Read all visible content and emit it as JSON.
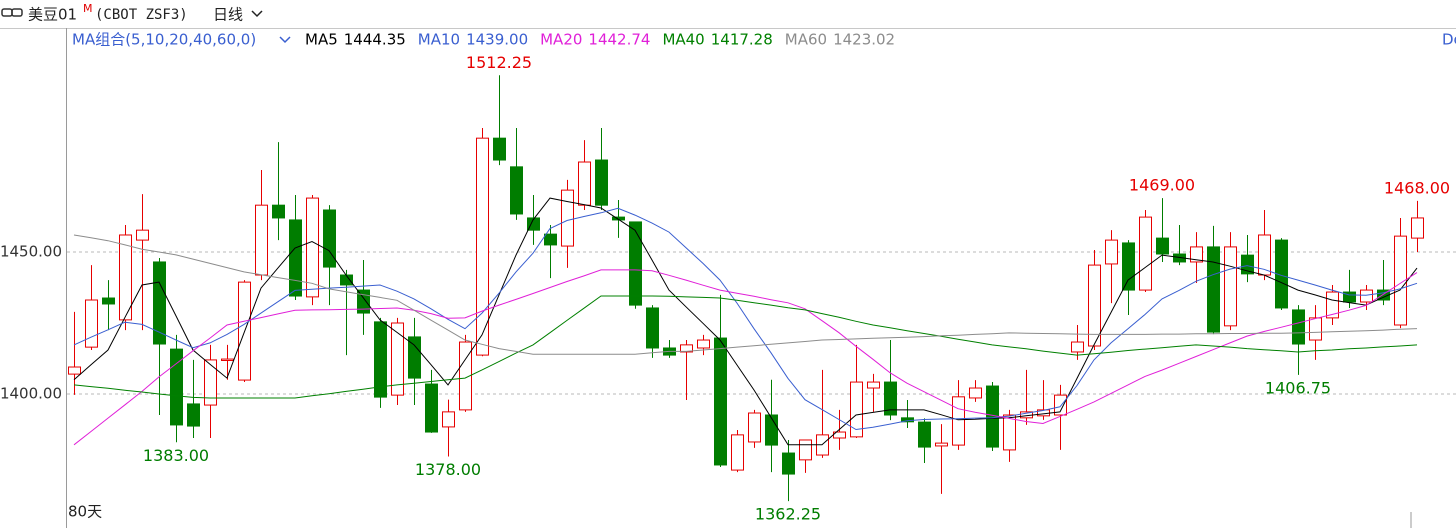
{
  "toolbar": {
    "symbol": "美豆01",
    "superscript": "M",
    "code": "(CBOT ZSF3)",
    "period": "日线"
  },
  "chart_data": {
    "type": "candlestick",
    "indicator_label": "MA组合(5,10,20,40,60,0)",
    "edge_text": "De",
    "footer": "80天",
    "ylim": [
      1352.8,
      1528.9
    ],
    "yticks": [
      {
        "value": 1450,
        "label": "1450.00"
      },
      {
        "value": 1400,
        "label": "1400.00"
      }
    ],
    "grid": true,
    "up_color": "#e60000",
    "down_color": "#007d00",
    "open": [
      1407.0,
      1416.5,
      1433.8,
      1426.1,
      1454.2,
      1446.5,
      1415.8,
      1396.5,
      1396.1,
      1411.8,
      1404.9,
      1441.9,
      1466.5,
      1461.3,
      1434.2,
      1464.8,
      1441.9,
      1436.6,
      1425.4,
      1399.6,
      1420.1,
      1403.5,
      1388.4,
      1394.4,
      1413.7,
      1490.1,
      1480.0,
      1462.0,
      1456.3,
      1452.1,
      1466.5,
      1482.4,
      1462.3,
      1460.6,
      1430.3,
      1416.2,
      1414.8,
      1416.2,
      1419.7,
      1373.2,
      1383.1,
      1392.6,
      1379.2,
      1376.8,
      1378.5,
      1384.5,
      1384.9,
      1402.1,
      1404.2,
      1391.6,
      1390.1,
      1381.7,
      1382.0,
      1398.6,
      1402.8,
      1380.3,
      1391.6,
      1392.3,
      1392.6,
      1414.8,
      1416.9,
      1445.8,
      1453.2,
      1436.6,
      1454.9,
      1449.3,
      1446.5,
      1451.8,
      1424.0,
      1448.9,
      1441.9,
      1454.2,
      1429.6,
      1419.0,
      1426.8,
      1435.9,
      1432.4,
      1436.6,
      1424.3,
      1454.9
    ],
    "high": [
      1428.9,
      1445.4,
      1440.1,
      1459.5,
      1470.4,
      1447.9,
      1420.8,
      1412.0,
      1417.3,
      1417.3,
      1440.1,
      1478.9,
      1488.7,
      1470.1,
      1470.1,
      1466.5,
      1443.7,
      1447.2,
      1426.8,
      1426.8,
      1426.8,
      1408.5,
      1398.0,
      1420.8,
      1493.7,
      1512.25,
      1493.7,
      1470.1,
      1459.5,
      1475.4,
      1489.4,
      1493.7,
      1468.3,
      1460.6,
      1431.3,
      1419.0,
      1419.0,
      1420.8,
      1434.9,
      1387.3,
      1394.4,
      1405.0,
      1383.8,
      1383.8,
      1408.5,
      1394.4,
      1417.3,
      1407.1,
      1419.0,
      1397.9,
      1391.4,
      1389.4,
      1404.9,
      1404.9,
      1404.2,
      1394.4,
      1408.5,
      1404.9,
      1403.2,
      1424.3,
      1450.7,
      1457.7,
      1454.2,
      1464.8,
      1469.0,
      1459.5,
      1457.0,
      1459.2,
      1457.0,
      1456.0,
      1464.8,
      1454.9,
      1431.3,
      1431.3,
      1438.4,
      1443.7,
      1438.4,
      1447.2,
      1462.0,
      1468.0
    ],
    "low": [
      1399.7,
      1415.5,
      1422.5,
      1422.5,
      1422.5,
      1392.6,
      1383.0,
      1384.5,
      1384.5,
      1405.0,
      1404.2,
      1440.1,
      1454.2,
      1433.1,
      1431.3,
      1431.3,
      1413.7,
      1420.8,
      1395.1,
      1396.1,
      1396.1,
      1386.3,
      1378.0,
      1393.7,
      1413.3,
      1480.6,
      1461.3,
      1452.5,
      1440.8,
      1444.4,
      1464.8,
      1464.8,
      1455.0,
      1430.0,
      1412.7,
      1412.7,
      1397.9,
      1413.7,
      1374.3,
      1372.5,
      1381.0,
      1372.5,
      1362.25,
      1372.2,
      1377.5,
      1380.3,
      1384.5,
      1393.7,
      1390.8,
      1388.0,
      1375.7,
      1364.8,
      1380.3,
      1397.2,
      1379.9,
      1376.1,
      1389.1,
      1390.9,
      1380.3,
      1412.0,
      1415.5,
      1432.0,
      1427.8,
      1435.9,
      1446.5,
      1445.4,
      1439.1,
      1421.1,
      1422.5,
      1439.4,
      1440.1,
      1429.6,
      1406.75,
      1412.0,
      1424.3,
      1430.3,
      1429.6,
      1431.3,
      1423.2,
      1450.0
    ],
    "close": [
      1409.5,
      1433.1,
      1431.7,
      1456.0,
      1457.7,
      1417.6,
      1389.1,
      1388.7,
      1412.0,
      1412.3,
      1439.4,
      1466.5,
      1462.0,
      1434.5,
      1469.0,
      1444.7,
      1438.4,
      1428.5,
      1398.9,
      1425.0,
      1405.6,
      1386.6,
      1393.7,
      1418.3,
      1490.1,
      1482.4,
      1463.4,
      1457.7,
      1452.5,
      1471.8,
      1481.7,
      1466.5,
      1461.3,
      1431.3,
      1416.2,
      1413.7,
      1417.3,
      1419.0,
      1375.0,
      1385.6,
      1393.3,
      1382.0,
      1371.8,
      1383.8,
      1385.6,
      1386.6,
      1404.2,
      1404.2,
      1392.6,
      1390.2,
      1381.3,
      1382.7,
      1399.0,
      1402.1,
      1381.3,
      1392.6,
      1393.7,
      1394.4,
      1399.6,
      1418.3,
      1445.4,
      1454.2,
      1436.6,
      1462.3,
      1449.3,
      1446.5,
      1451.8,
      1421.8,
      1451.8,
      1442.3,
      1456.0,
      1430.3,
      1417.6,
      1426.8,
      1435.9,
      1432.4,
      1436.6,
      1433.1,
      1455.6,
      1462.0
    ],
    "series": [
      {
        "name": "MA5",
        "color": "#000000",
        "legend_value": "1444.35",
        "values": [
          1405,
          1410.3,
          1415.5,
          1427,
          1438.4,
          1439.4,
          1427.5,
          1415.5,
          1410.5,
          1405.6,
          1421.5,
          1437.3,
          1444.4,
          1451.4,
          1453.7,
          1450.5,
          1441.9,
          1434,
          1426.1,
          1421.7,
          1417.3,
          1410.3,
          1403.2,
          1412,
          1420.8,
          1434.9,
          1448.9,
          1461.3,
          1469,
          1467.8,
          1466.7,
          1465.5,
          1461.6,
          1457.7,
          1447.2,
          1436.6,
          1430.7,
          1424.9,
          1419,
          1410.2,
          1401.4,
          1391.8,
          1382.1,
          1382.1,
          1382.1,
          1387.4,
          1392.6,
          1393.5,
          1394.4,
          1394.4,
          1394.4,
          1392.7,
          1390.9,
          1391.1,
          1391.4,
          1391.6,
          1392.3,
          1393,
          1393.7,
          1405.5,
          1417.3,
          1428.7,
          1440.1,
          1444.5,
          1448.9,
          1448.1,
          1447.3,
          1446.5,
          1445,
          1443.4,
          1441.9,
          1439.3,
          1436.6,
          1434.9,
          1433.1,
          1432.2,
          1431.3,
          1434,
          1436.6,
          1444.35
        ]
      },
      {
        "name": "MA10",
        "color": "#3a5fd0",
        "legend_value": "1439.00",
        "values": [
          1417.3,
          1420,
          1422.6,
          1425.3,
          1424.5,
          1421.8,
          1419,
          1416.3,
          1418,
          1421,
          1424.5,
          1428.5,
          1432.5,
          1436.5,
          1436.9,
          1437.3,
          1437.6,
          1438,
          1438.4,
          1436.2,
          1433.5,
          1430,
          1426.3,
          1423,
          1428.5,
          1435.5,
          1443,
          1449.6,
          1458.3,
          1461.1,
          1462.5,
          1463.8,
          1465.4,
          1463,
          1460.2,
          1457,
          1451.5,
          1446,
          1440.1,
          1432,
          1423,
          1414.5,
          1405.5,
          1398,
          1394.5,
          1391,
          1387.5,
          1388.3,
          1389.4,
          1390.6,
          1391,
          1391.2,
          1391.3,
          1391.5,
          1391.6,
          1392.2,
          1393.2,
          1394.2,
          1395.5,
          1403,
          1412,
          1418,
          1423,
          1428,
          1433.5,
          1436.5,
          1439.7,
          1442,
          1444,
          1445.2,
          1443.9,
          1441.8,
          1440.1,
          1438.4,
          1436.6,
          1434.9,
          1434.8,
          1435.6,
          1437,
          1439
        ]
      },
      {
        "name": "MA20",
        "color": "#e020d8",
        "legend_value": "1442.74",
        "values": [
          1382.1,
          1386.8,
          1391.5,
          1396.2,
          1400.9,
          1406,
          1410.6,
          1415.2,
          1419.7,
          1424.3,
          1425.6,
          1426.9,
          1428.2,
          1429.5,
          1429.6,
          1429.7,
          1429.8,
          1429.9,
          1430.1,
          1430.3,
          1429.5,
          1428.3,
          1426.7,
          1426.8,
          1429.2,
          1431.3,
          1433.3,
          1435.4,
          1437.5,
          1439.6,
          1441.6,
          1443.7,
          1443.7,
          1443.7,
          1443.4,
          1441.8,
          1440.1,
          1438.3,
          1436.6,
          1435.5,
          1434.4,
          1433.2,
          1432.1,
          1430,
          1425.8,
          1421.6,
          1416.8,
          1412.2,
          1407.5,
          1403.8,
          1400.8,
          1397.8,
          1394.8,
          1393.6,
          1392.5,
          1391.4,
          1390.3,
          1389.6,
          1392.1,
          1394.6,
          1397.2,
          1400.2,
          1403.2,
          1406.2,
          1408.4,
          1410.8,
          1413.2,
          1415.6,
          1418,
          1420.4,
          1422,
          1423.5,
          1425,
          1426.5,
          1428,
          1429.5,
          1431.2,
          1435,
          1438.9,
          1442.74
        ]
      },
      {
        "name": "MA40",
        "color": "#008000",
        "legend_value": "1417.28",
        "values": [
          1403.2,
          1402.6,
          1402,
          1401.3,
          1400.7,
          1400,
          1399.4,
          1398.8,
          1398.6,
          1398.6,
          1398.6,
          1398.6,
          1398.6,
          1398.6,
          1399.4,
          1400.1,
          1400.9,
          1401.7,
          1402.5,
          1403.2,
          1403.8,
          1404.4,
          1405,
          1405.6,
          1408.5,
          1411.4,
          1414.4,
          1417.3,
          1421.6,
          1425.9,
          1430.2,
          1434.5,
          1434.5,
          1434.5,
          1434.5,
          1434.4,
          1434.2,
          1434,
          1433.8,
          1433,
          1432.1,
          1431.3,
          1430.4,
          1429.6,
          1428.3,
          1427,
          1425.6,
          1424.3,
          1423.3,
          1422.3,
          1421.3,
          1420.3,
          1419.3,
          1418.3,
          1417.3,
          1416.6,
          1415.9,
          1415.1,
          1414.4,
          1413.7,
          1414.2,
          1414.7,
          1415.3,
          1415.8,
          1416.3,
          1416.8,
          1417.3,
          1416.9,
          1416.5,
          1416,
          1415.6,
          1415.2,
          1414.8,
          1415.2,
          1415.5,
          1415.9,
          1416.2,
          1416.6,
          1416.9,
          1417.28
        ]
      },
      {
        "name": "MA60",
        "color": "#8c8c8c",
        "legend_value": "1423.02",
        "values": [
          1456,
          1455,
          1454,
          1452.5,
          1451,
          1450,
          1449,
          1447.5,
          1446,
          1444.5,
          1443,
          1442,
          1441,
          1440,
          1439,
          1437,
          1436,
          1435,
          1434,
          1433,
          1429.5,
          1426,
          1422.5,
          1419,
          1417.5,
          1416,
          1415,
          1414,
          1414,
          1414,
          1414,
          1414,
          1414,
          1414,
          1414.5,
          1415,
          1415,
          1415.5,
          1416,
          1416.5,
          1417,
          1417.5,
          1418,
          1418.5,
          1419,
          1419.2,
          1419.4,
          1419.6,
          1419.8,
          1420,
          1420.2,
          1420.5,
          1420.7,
          1421,
          1421.2,
          1421.5,
          1421.4,
          1421.3,
          1421.2,
          1421.1,
          1421,
          1421,
          1421,
          1421,
          1421.1,
          1421.1,
          1421.2,
          1421.2,
          1421.3,
          1421.3,
          1421.4,
          1421.4,
          1421.5,
          1421.7,
          1421.9,
          1422.1,
          1422.3,
          1422.5,
          1422.8,
          1423.02
        ]
      }
    ],
    "annotations": [
      {
        "value": 1512.25,
        "label": "1512.25"
      },
      {
        "value": 1383,
        "label": "1383.00"
      },
      {
        "value": 1378,
        "label": "1378.00"
      },
      {
        "value": 1362.25,
        "label": "1362.25"
      },
      {
        "value": 1469,
        "label": "1469.00"
      },
      {
        "value": 1468,
        "label": "1468.00"
      },
      {
        "value": 1406.75,
        "label": "1406.75"
      }
    ]
  }
}
